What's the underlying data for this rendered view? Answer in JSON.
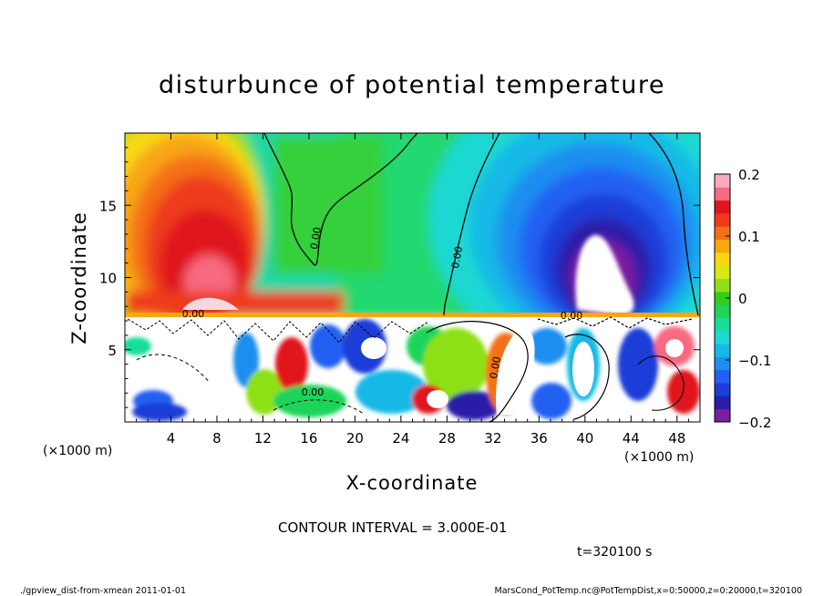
{
  "chart_data": {
    "type": "heatmap",
    "title": "disturbunce of potential temperature",
    "xlabel": "X-coordinate",
    "ylabel": "Z-coordinate",
    "x_unit_note_left": "(×1000 m)",
    "x_unit_note_right": "(×1000 m)",
    "xlim": [
      0,
      50
    ],
    "ylim": [
      0,
      20
    ],
    "x_ticks": [
      4,
      8,
      12,
      16,
      20,
      24,
      28,
      32,
      36,
      40,
      44,
      48
    ],
    "y_ticks": [
      5,
      10,
      15
    ],
    "colorbar": {
      "ticks": [
        0.2,
        0.1,
        0,
        -0.1,
        -0.2
      ],
      "tick_labels": [
        "0.2",
        "0.1",
        "0",
        "−0.1",
        "−0.2"
      ],
      "range": [
        -0.2,
        0.2
      ],
      "colors": [
        "#7a1fa0",
        "#2a1ea8",
        "#1e3cd8",
        "#2160f2",
        "#1f8ef0",
        "#16b9e6",
        "#1ed8d2",
        "#18dc9c",
        "#1fd45a",
        "#34cc1c",
        "#8ee016",
        "#d8e814",
        "#f8d812",
        "#f8a612",
        "#f47018",
        "#ee3a1a",
        "#e0141e",
        "#f86a80",
        "#f8aac0"
      ]
    },
    "contour_labels": [
      "0.00",
      "0.00",
      "0.00",
      "0.00",
      "0.00",
      "0.00"
    ],
    "contour_interval_text": "CONTOUR INTERVAL = 3.000E-01",
    "time_text": "t=320100 s",
    "footer_left": "./gpview_dist-from-xmean  2011-01-01",
    "footer_right": "MarsCond_PotTemp.nc@PotTempDist,x=0:50000,z=0:20000,t=320100"
  }
}
